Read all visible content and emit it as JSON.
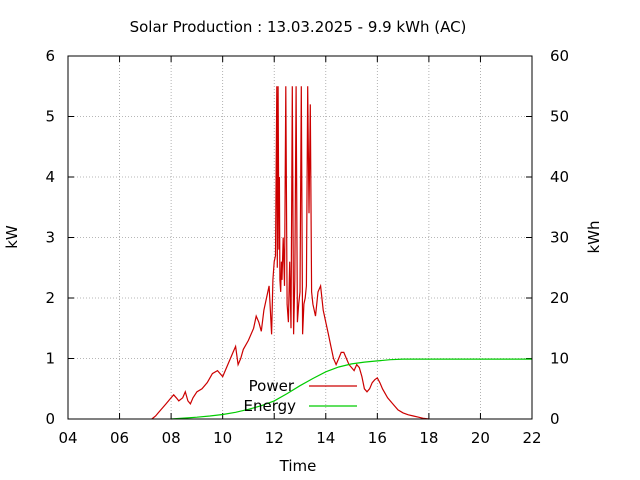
{
  "chart_data": {
    "type": "line",
    "title": "Solar Production : 13.03.2025 - 9.9 kWh (AC)",
    "xlabel": "Time",
    "ylabel": "kW",
    "y2label": "kWh",
    "xlim": [
      4,
      22
    ],
    "ylim": [
      0,
      6
    ],
    "y2lim": [
      0,
      60
    ],
    "x_ticks": [
      {
        "value": 4,
        "label": "04"
      },
      {
        "value": 6,
        "label": "06"
      },
      {
        "value": 8,
        "label": "08"
      },
      {
        "value": 10,
        "label": "10"
      },
      {
        "value": 12,
        "label": "12"
      },
      {
        "value": 14,
        "label": "14"
      },
      {
        "value": 16,
        "label": "16"
      },
      {
        "value": 18,
        "label": "18"
      },
      {
        "value": 20,
        "label": "20"
      },
      {
        "value": 22,
        "label": "22"
      }
    ],
    "y_ticks": [
      "0",
      "1",
      "2",
      "3",
      "4",
      "5",
      "6"
    ],
    "y2_ticks": [
      "0",
      "10",
      "20",
      "30",
      "40",
      "50",
      "60"
    ],
    "grid": true,
    "legend_position": "bottom-center",
    "series": [
      {
        "name": "Power",
        "axis": "y1",
        "color": "#cc0000",
        "x": [
          7.25,
          7.4,
          7.5,
          7.6,
          7.7,
          7.8,
          7.9,
          8.0,
          8.1,
          8.2,
          8.3,
          8.45,
          8.55,
          8.65,
          8.75,
          8.85,
          9.0,
          9.2,
          9.4,
          9.6,
          9.8,
          10.0,
          10.2,
          10.4,
          10.5,
          10.6,
          10.7,
          10.8,
          11.0,
          11.2,
          11.3,
          11.4,
          11.5,
          11.6,
          11.7,
          11.8,
          11.9,
          11.95,
          12.0,
          12.05,
          12.1,
          12.12,
          12.15,
          12.18,
          12.2,
          12.22,
          12.25,
          12.28,
          12.3,
          12.35,
          12.4,
          12.45,
          12.5,
          12.55,
          12.6,
          12.65,
          12.7,
          12.75,
          12.8,
          12.85,
          12.9,
          12.95,
          13.0,
          13.05,
          13.1,
          13.15,
          13.2,
          13.25,
          13.3,
          13.35,
          13.4,
          13.45,
          13.5,
          13.6,
          13.7,
          13.8,
          13.9,
          14.0,
          14.1,
          14.2,
          14.3,
          14.4,
          14.5,
          14.6,
          14.7,
          14.8,
          14.9,
          15.0,
          15.1,
          15.2,
          15.3,
          15.4,
          15.5,
          15.6,
          15.7,
          15.8,
          15.9,
          16.0,
          16.1,
          16.2,
          16.4,
          16.6,
          16.8,
          17.0,
          17.2,
          17.4,
          17.6,
          17.8,
          18.0
        ],
        "y": [
          0.0,
          0.05,
          0.1,
          0.15,
          0.2,
          0.25,
          0.3,
          0.35,
          0.4,
          0.35,
          0.3,
          0.35,
          0.45,
          0.3,
          0.25,
          0.35,
          0.45,
          0.5,
          0.6,
          0.75,
          0.8,
          0.7,
          0.9,
          1.1,
          1.2,
          0.9,
          1.0,
          1.15,
          1.3,
          1.5,
          1.7,
          1.6,
          1.45,
          1.8,
          2.0,
          2.2,
          1.4,
          2.3,
          2.6,
          2.7,
          5.5,
          2.5,
          5.5,
          2.8,
          4.0,
          2.3,
          2.1,
          2.6,
          2.3,
          3.0,
          2.2,
          5.5,
          1.9,
          1.6,
          2.6,
          1.5,
          5.5,
          1.4,
          2.3,
          5.5,
          1.6,
          1.9,
          2.1,
          5.5,
          1.4,
          1.9,
          2.0,
          2.2,
          5.5,
          3.4,
          5.2,
          2.1,
          1.9,
          1.7,
          2.1,
          2.2,
          1.8,
          1.6,
          1.4,
          1.2,
          1.0,
          0.9,
          1.0,
          1.1,
          1.1,
          1.0,
          0.9,
          0.85,
          0.8,
          0.9,
          0.85,
          0.7,
          0.5,
          0.45,
          0.5,
          0.6,
          0.65,
          0.68,
          0.6,
          0.5,
          0.35,
          0.25,
          0.15,
          0.1,
          0.07,
          0.05,
          0.03,
          0.01,
          0.0
        ]
      },
      {
        "name": "Energy",
        "axis": "y2",
        "color": "#00cc00",
        "x": [
          8.0,
          8.5,
          9.0,
          9.5,
          10.0,
          10.5,
          11.0,
          11.5,
          12.0,
          12.5,
          13.0,
          13.5,
          14.0,
          14.5,
          15.0,
          15.5,
          16.0,
          16.5,
          17.0,
          17.5,
          18.0,
          20.0,
          22.0
        ],
        "y": [
          0.0,
          0.15,
          0.3,
          0.5,
          0.75,
          1.1,
          1.6,
          2.2,
          3.0,
          4.2,
          5.5,
          6.7,
          7.8,
          8.6,
          9.1,
          9.4,
          9.6,
          9.8,
          9.9,
          9.9,
          9.9,
          9.9,
          9.9
        ]
      }
    ]
  }
}
